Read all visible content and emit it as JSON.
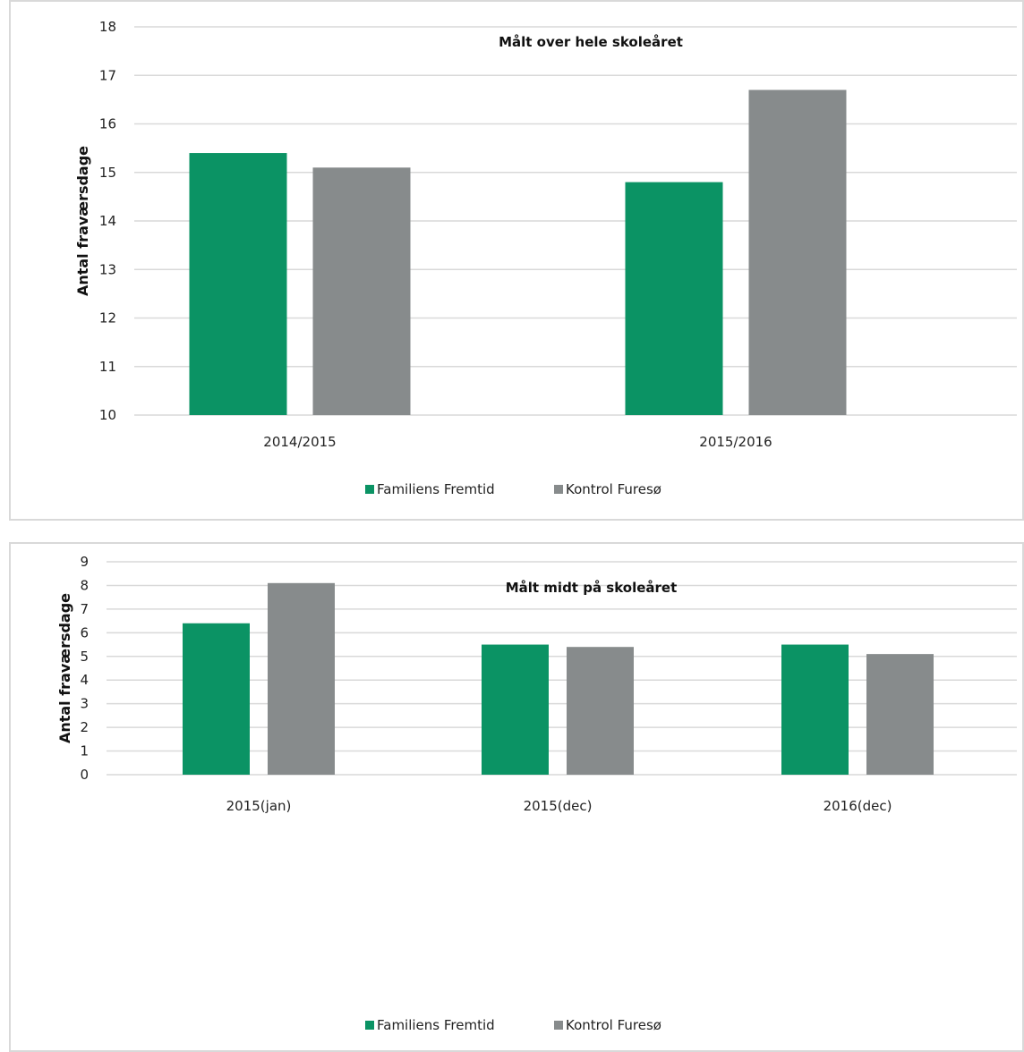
{
  "colors": {
    "familiens": "#0b9364",
    "kontrol": "#878b8c",
    "grid": "#d9d9d9"
  },
  "chart_data": [
    {
      "type": "bar",
      "title": "Målt over hele skoleåret",
      "ylabel": "Antal fraværsdage",
      "xlabel": "",
      "ylim": [
        10,
        18
      ],
      "yticks": [
        10,
        11,
        12,
        13,
        14,
        15,
        16,
        17,
        18
      ],
      "categories": [
        "2014/2015",
        "2015/2016"
      ],
      "series": [
        {
          "name": "Familiens Fremtid",
          "values": [
            15.4,
            14.8
          ]
        },
        {
          "name": "Kontrol Furesø",
          "values": [
            15.1,
            16.7
          ]
        }
      ],
      "grid": true,
      "legend": "bottom"
    },
    {
      "type": "bar",
      "title": "Målt midt på skoleåret",
      "ylabel": "Antal fraværsdage",
      "xlabel": "",
      "ylim": [
        0,
        9
      ],
      "yticks": [
        0,
        1,
        2,
        3,
        4,
        5,
        6,
        7,
        8,
        9
      ],
      "categories": [
        "2015(jan)",
        "2015(dec)",
        "2016(dec)"
      ],
      "series": [
        {
          "name": "Familiens Fremtid",
          "values": [
            6.4,
            5.5,
            5.5
          ]
        },
        {
          "name": "Kontrol Furesø",
          "values": [
            8.1,
            5.4,
            5.1
          ]
        }
      ],
      "grid": true,
      "legend": "bottom"
    }
  ]
}
